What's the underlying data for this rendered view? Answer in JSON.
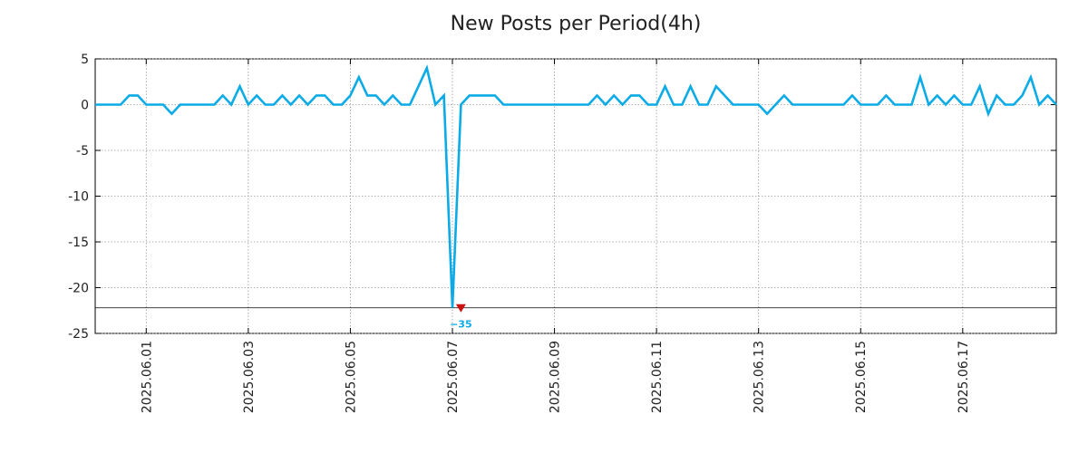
{
  "chart_data": {
    "type": "line",
    "title": "New Posts per Period(4h)",
    "xlabel": "",
    "ylabel": "",
    "x_tick_labels": [
      "2025.06.01",
      "2025.06.03",
      "2025.06.05",
      "2025.06.07",
      "2025.06.09",
      "2025.06.11",
      "2025.06.13",
      "2025.06.15",
      "2025.06.17"
    ],
    "y_tick_labels": [
      "5",
      "0",
      "-5",
      "-10",
      "-15",
      "-20",
      "-25"
    ],
    "y_ticks": [
      5,
      0,
      -5,
      -10,
      -15,
      -20,
      -25
    ],
    "xlim": [
      "2025-05-31 00:00",
      "2025-06-18 20:00"
    ],
    "ylim": [
      -25,
      5
    ],
    "grid": true,
    "line_color": "#0aabe6",
    "marker_color": "#cc1111",
    "clip_value": -22.2,
    "annotation": {
      "x": "2025-06-07 04:00",
      "value": -35,
      "label": "−35",
      "color": "#0aabe6"
    },
    "series": [
      {
        "x": [
          "2025-05-31 00:00",
          "2025-05-31 04:00",
          "2025-05-31 08:00",
          "2025-05-31 12:00",
          "2025-05-31 16:00",
          "2025-05-31 20:00",
          "2025-06-01 00:00",
          "2025-06-01 04:00",
          "2025-06-01 08:00",
          "2025-06-01 12:00",
          "2025-06-01 16:00",
          "2025-06-01 20:00",
          "2025-06-02 00:00",
          "2025-06-02 04:00",
          "2025-06-02 08:00",
          "2025-06-02 12:00",
          "2025-06-02 16:00",
          "2025-06-02 20:00",
          "2025-06-03 00:00",
          "2025-06-03 04:00",
          "2025-06-03 08:00",
          "2025-06-03 12:00",
          "2025-06-03 16:00",
          "2025-06-03 20:00",
          "2025-06-04 00:00",
          "2025-06-04 04:00",
          "2025-06-04 08:00",
          "2025-06-04 12:00",
          "2025-06-04 16:00",
          "2025-06-04 20:00",
          "2025-06-05 00:00",
          "2025-06-05 04:00",
          "2025-06-05 08:00",
          "2025-06-05 12:00",
          "2025-06-05 16:00",
          "2025-06-05 20:00",
          "2025-06-06 00:00",
          "2025-06-06 04:00",
          "2025-06-06 08:00",
          "2025-06-06 12:00",
          "2025-06-06 16:00",
          "2025-06-06 20:00",
          "2025-06-07 00:00",
          "2025-06-07 04:00",
          "2025-06-07 08:00",
          "2025-06-07 12:00",
          "2025-06-07 16:00",
          "2025-06-07 20:00",
          "2025-06-08 00:00",
          "2025-06-08 04:00",
          "2025-06-08 08:00",
          "2025-06-08 12:00",
          "2025-06-08 16:00",
          "2025-06-08 20:00",
          "2025-06-09 00:00",
          "2025-06-09 04:00",
          "2025-06-09 08:00",
          "2025-06-09 12:00",
          "2025-06-09 16:00",
          "2025-06-09 20:00",
          "2025-06-10 00:00",
          "2025-06-10 04:00",
          "2025-06-10 08:00",
          "2025-06-10 12:00",
          "2025-06-10 16:00",
          "2025-06-10 20:00",
          "2025-06-11 00:00",
          "2025-06-11 04:00",
          "2025-06-11 08:00",
          "2025-06-11 12:00",
          "2025-06-11 16:00",
          "2025-06-11 20:00",
          "2025-06-12 00:00",
          "2025-06-12 04:00",
          "2025-06-12 08:00",
          "2025-06-12 12:00",
          "2025-06-12 16:00",
          "2025-06-12 20:00",
          "2025-06-13 00:00",
          "2025-06-13 04:00",
          "2025-06-13 08:00",
          "2025-06-13 12:00",
          "2025-06-13 16:00",
          "2025-06-13 20:00",
          "2025-06-14 00:00",
          "2025-06-14 04:00",
          "2025-06-14 08:00",
          "2025-06-14 12:00",
          "2025-06-14 16:00",
          "2025-06-14 20:00",
          "2025-06-15 00:00",
          "2025-06-15 04:00",
          "2025-06-15 08:00",
          "2025-06-15 12:00",
          "2025-06-15 16:00",
          "2025-06-15 20:00",
          "2025-06-16 00:00",
          "2025-06-16 04:00",
          "2025-06-16 08:00",
          "2025-06-16 12:00",
          "2025-06-16 16:00",
          "2025-06-16 20:00",
          "2025-06-17 00:00",
          "2025-06-17 04:00",
          "2025-06-17 08:00",
          "2025-06-17 12:00",
          "2025-06-17 16:00",
          "2025-06-17 20:00",
          "2025-06-18 00:00",
          "2025-06-18 04:00",
          "2025-06-18 08:00",
          "2025-06-18 12:00",
          "2025-06-18 16:00",
          "2025-06-18 20:00"
        ],
        "values": [
          0,
          0,
          0,
          0,
          1,
          1,
          0,
          0,
          0,
          -1,
          0,
          0,
          0,
          0,
          0,
          1,
          0,
          2,
          0,
          1,
          0,
          0,
          1,
          0,
          1,
          0,
          1,
          1,
          0,
          0,
          1,
          3,
          1,
          1,
          0,
          1,
          0,
          0,
          2,
          4,
          0,
          1,
          -35,
          0,
          1,
          1,
          1,
          1,
          0,
          0,
          0,
          0,
          0,
          0,
          0,
          0,
          0,
          0,
          0,
          1,
          0,
          1,
          0,
          1,
          1,
          0,
          0,
          2,
          0,
          0,
          2,
          0,
          0,
          2,
          1,
          0,
          0,
          0,
          0,
          -1,
          0,
          1,
          0,
          0,
          0,
          0,
          0,
          0,
          0,
          1,
          0,
          0,
          0,
          1,
          0,
          0,
          0,
          3,
          0,
          1,
          0,
          1,
          0,
          0,
          2,
          -1,
          1,
          0,
          0,
          1,
          3,
          0,
          1,
          0
        ]
      }
    ]
  }
}
